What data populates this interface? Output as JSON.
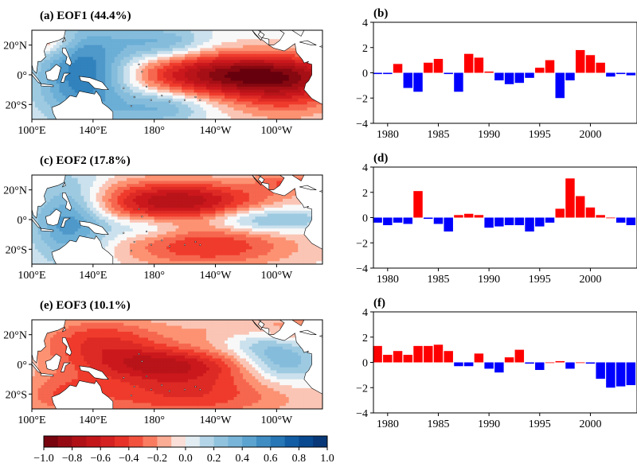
{
  "colors": {
    "positive_bar": "#ff0000",
    "negative_bar": "#0000ff",
    "land": "#ffffff",
    "coast": "#000000"
  },
  "colormap": "RdBu (red negative, blue positive)",
  "maps": [
    {
      "id": "eof1",
      "title": "(a) EOF1 (44.4%)",
      "pattern": "el-nino-tongue"
    },
    {
      "id": "eof2",
      "title": "(c) EOF2 (17.8%)",
      "pattern": "horseshoe"
    },
    {
      "id": "eof3",
      "title": "(e) EOF3 (10.1%)",
      "pattern": "basin-warm"
    }
  ],
  "map_axes": {
    "x_ticks": [
      "100°E",
      "140°E",
      "180°",
      "140°W",
      "100°W"
    ],
    "y_ticks": [
      "20°N",
      "0°",
      "20°S"
    ]
  },
  "colorbar": {
    "ticks": [
      "−1.0",
      "−0.8",
      "−0.6",
      "−0.4",
      "−0.2",
      "0.0",
      "0.2",
      "0.4",
      "0.6",
      "0.8",
      "1.0"
    ],
    "range": [
      -1.0,
      1.0
    ]
  },
  "chart_data": [
    {
      "type": "bar",
      "title": "(b)",
      "x": [
        1979,
        1980,
        1981,
        1982,
        1983,
        1984,
        1985,
        1986,
        1987,
        1988,
        1989,
        1990,
        1991,
        1992,
        1993,
        1994,
        1995,
        1996,
        1997,
        1998,
        1999,
        2000,
        2001,
        2002,
        2003,
        2004
      ],
      "values": [
        -0.1,
        -0.1,
        0.7,
        -1.2,
        -1.5,
        0.8,
        1.1,
        -0.1,
        -1.5,
        1.5,
        1.2,
        0.1,
        -0.6,
        -0.9,
        -0.8,
        -0.4,
        0.4,
        1.0,
        -2.0,
        -0.6,
        1.8,
        1.4,
        0.8,
        -0.3,
        -0.1,
        -0.2
      ],
      "ylim": [
        -4,
        4
      ],
      "yticks": [
        -4,
        -2,
        0,
        2,
        4
      ],
      "xticks": [
        1980,
        1985,
        1990,
        1995,
        2000
      ]
    },
    {
      "type": "bar",
      "title": "(d)",
      "x": [
        1979,
        1980,
        1981,
        1982,
        1983,
        1984,
        1985,
        1986,
        1987,
        1988,
        1989,
        1990,
        1991,
        1992,
        1993,
        1994,
        1995,
        1996,
        1997,
        1998,
        1999,
        2000,
        2001,
        2002,
        2003,
        2004
      ],
      "values": [
        -0.4,
        -0.6,
        -0.4,
        -0.5,
        2.1,
        -0.1,
        -0.5,
        -1.1,
        0.2,
        0.3,
        0.2,
        -0.8,
        -0.7,
        -0.6,
        -0.6,
        -1.1,
        -0.7,
        -0.4,
        0.7,
        3.1,
        1.7,
        0.8,
        0.2,
        0.0,
        -0.4,
        -0.6
      ],
      "ylim": [
        -4,
        4
      ],
      "yticks": [
        -4,
        -2,
        0,
        2,
        4
      ],
      "xticks": [
        1980,
        1985,
        1990,
        1995,
        2000
      ]
    },
    {
      "type": "bar",
      "title": "(f)",
      "x": [
        1979,
        1980,
        1981,
        1982,
        1983,
        1984,
        1985,
        1986,
        1987,
        1988,
        1989,
        1990,
        1991,
        1992,
        1993,
        1994,
        1995,
        1996,
        1997,
        1998,
        1999,
        2000,
        2001,
        2002,
        2003,
        2004
      ],
      "values": [
        1.3,
        0.6,
        0.9,
        0.6,
        1.3,
        1.3,
        1.4,
        0.9,
        -0.3,
        -0.3,
        0.7,
        -0.5,
        -0.8,
        0.4,
        1.0,
        -0.1,
        -0.6,
        0.0,
        0.1,
        -0.5,
        0.0,
        -0.1,
        -1.3,
        -2.0,
        -1.9,
        -1.8
      ],
      "ylim": [
        -4,
        4
      ],
      "yticks": [
        -4,
        -2,
        0,
        2,
        4
      ],
      "xticks": [
        1980,
        1985,
        1990,
        1995,
        2000
      ]
    }
  ]
}
